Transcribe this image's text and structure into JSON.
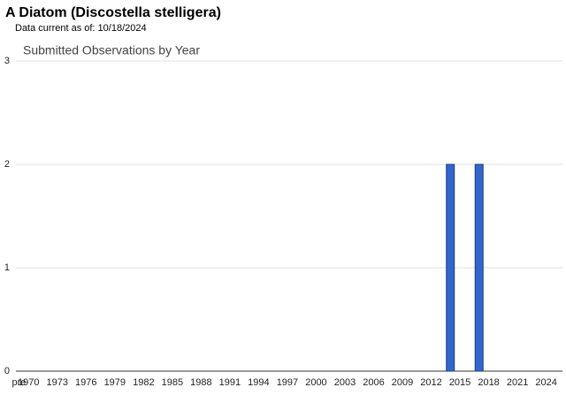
{
  "header": {
    "title": "A Diatom   (Discostella stelligera)",
    "subtitle": "Data current as of: 10/18/2024"
  },
  "chart_data": {
    "type": "bar",
    "title": "Submitted Observations by Year",
    "categories": [
      "pre",
      "1970",
      null,
      null,
      "1973",
      null,
      null,
      "1976",
      null,
      null,
      "1979",
      null,
      null,
      "1982",
      null,
      null,
      "1985",
      null,
      null,
      "1988",
      null,
      null,
      "1991",
      null,
      null,
      "1994",
      null,
      null,
      "1997",
      null,
      null,
      "2000",
      null,
      null,
      "2003",
      null,
      null,
      "2006",
      null,
      null,
      "2009",
      null,
      null,
      "2012",
      null,
      null,
      "2015",
      null,
      null,
      "2018",
      null,
      null,
      "2021",
      null,
      null,
      "2024"
    ],
    "values": [
      0,
      0,
      0,
      0,
      0,
      0,
      0,
      0,
      0,
      0,
      0,
      0,
      0,
      0,
      0,
      0,
      0,
      0,
      0,
      0,
      0,
      0,
      0,
      0,
      0,
      0,
      0,
      0,
      0,
      0,
      0,
      0,
      0,
      0,
      0,
      0,
      0,
      0,
      0,
      0,
      0,
      0,
      0,
      0,
      0,
      2,
      0,
      0,
      2,
      0,
      0,
      0,
      0,
      0,
      0,
      0
    ],
    "color": "#3366cc",
    "ylim": [
      0,
      3
    ],
    "yticks": [
      0,
      1,
      2,
      3
    ],
    "grid": true
  }
}
